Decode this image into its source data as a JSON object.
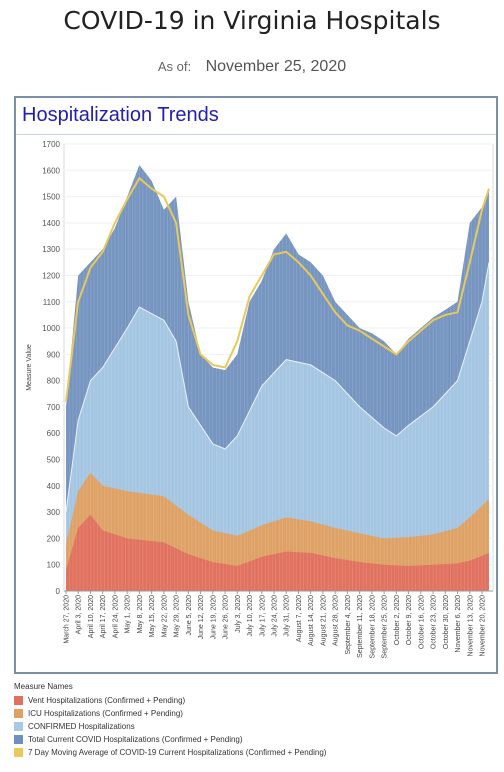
{
  "header": {
    "title": "COVID-19 in Virginia Hospitals",
    "as_of_label": "As of:",
    "as_of_date": "November 25, 2020"
  },
  "panel": {
    "title": "Hospitalization Trends"
  },
  "legend": {
    "title": "Measure Names",
    "items": [
      {
        "label": "Vent Hospitalizations (Confirmed + Pending)",
        "color": "#e07060"
      },
      {
        "label": "ICU Hospitalizations (Confirmed + Pending)",
        "color": "#e0a060"
      },
      {
        "label": "CONFIRMED Hospitalizations",
        "color": "#a8c8e4"
      },
      {
        "label": "Total Current COVID Hospitalizations (Confirmed + Pending)",
        "color": "#6f8fbd"
      },
      {
        "label": "7 Day Moving Average of COVID-19 Current Hospitalizations (Confirmed + Pending)",
        "color": "#e8c95a"
      }
    ]
  },
  "chart_data": {
    "type": "area",
    "ylabel": "Measure Value",
    "ylim": [
      0,
      1700
    ],
    "yticks": [
      0,
      100,
      200,
      300,
      400,
      500,
      600,
      700,
      800,
      900,
      1000,
      1100,
      1200,
      1300,
      1400,
      1500,
      1600,
      1700
    ],
    "x_range": [
      "March 27, 2020",
      "November 24, 2020"
    ],
    "x_ticks": [
      "March 27, 2020",
      "April 3, 2020",
      "April 10, 2020",
      "April 17, 2020",
      "April 24, 2020",
      "May 1, 2020",
      "May 8, 2020",
      "May 15, 2020",
      "May 22, 2020",
      "May 29, 2020",
      "June 5, 2020",
      "June 12, 2020",
      "June 19, 2020",
      "June 26, 2020",
      "July 3, 2020",
      "July 10, 2020",
      "July 17, 2020",
      "July 24, 2020",
      "July 31, 2020",
      "August 7, 2020",
      "August 14, 2020",
      "August 21, 2020",
      "August 28, 2020",
      "September 4, 2020",
      "September 11, 2020",
      "September 18, 2020",
      "September 25, 2020",
      "October 2, 2020",
      "October 9, 2020",
      "October 16, 2020",
      "October 23, 2020",
      "October 30, 2020",
      "November 6, 2020",
      "November 13, 2020",
      "November 20, 2020"
    ],
    "series": [
      {
        "name": "Vent Hospitalizations (Confirmed + Pending)",
        "color": "#e07060",
        "points": [
          [
            "March 27, 2020",
            80
          ],
          [
            "April 3, 2020",
            240
          ],
          [
            "April 10, 2020",
            290
          ],
          [
            "April 17, 2020",
            230
          ],
          [
            "May 1, 2020",
            200
          ],
          [
            "May 22, 2020",
            185
          ],
          [
            "June 5, 2020",
            140
          ],
          [
            "June 19, 2020",
            110
          ],
          [
            "July 3, 2020",
            95
          ],
          [
            "July 17, 2020",
            130
          ],
          [
            "July 31, 2020",
            150
          ],
          [
            "August 14, 2020",
            145
          ],
          [
            "August 28, 2020",
            125
          ],
          [
            "September 11, 2020",
            110
          ],
          [
            "September 25, 2020",
            100
          ],
          [
            "October 9, 2020",
            95
          ],
          [
            "October 23, 2020",
            100
          ],
          [
            "November 6, 2020",
            105
          ],
          [
            "November 13, 2020",
            115
          ],
          [
            "November 24, 2020",
            145
          ]
        ]
      },
      {
        "name": "ICU Hospitalizations (Confirmed + Pending)",
        "color": "#e0a060",
        "points": [
          [
            "March 27, 2020",
            180
          ],
          [
            "April 3, 2020",
            380
          ],
          [
            "April 10, 2020",
            450
          ],
          [
            "April 17, 2020",
            400
          ],
          [
            "May 1, 2020",
            380
          ],
          [
            "May 22, 2020",
            360
          ],
          [
            "June 5, 2020",
            290
          ],
          [
            "June 19, 2020",
            230
          ],
          [
            "July 3, 2020",
            210
          ],
          [
            "July 17, 2020",
            250
          ],
          [
            "July 31, 2020",
            280
          ],
          [
            "August 14, 2020",
            265
          ],
          [
            "August 28, 2020",
            240
          ],
          [
            "September 11, 2020",
            220
          ],
          [
            "September 25, 2020",
            200
          ],
          [
            "October 9, 2020",
            205
          ],
          [
            "October 23, 2020",
            215
          ],
          [
            "November 6, 2020",
            240
          ],
          [
            "November 13, 2020",
            280
          ],
          [
            "November 24, 2020",
            350
          ]
        ]
      },
      {
        "name": "CONFIRMED Hospitalizations",
        "color": "#a8c8e4",
        "points": [
          [
            "March 27, 2020",
            300
          ],
          [
            "April 3, 2020",
            650
          ],
          [
            "April 10, 2020",
            800
          ],
          [
            "April 17, 2020",
            850
          ],
          [
            "May 1, 2020",
            1000
          ],
          [
            "May 8, 2020",
            1080
          ],
          [
            "May 22, 2020",
            1030
          ],
          [
            "May 29, 2020",
            950
          ],
          [
            "June 5, 2020",
            700
          ],
          [
            "June 19, 2020",
            560
          ],
          [
            "June 26, 2020",
            540
          ],
          [
            "July 3, 2020",
            590
          ],
          [
            "July 17, 2020",
            780
          ],
          [
            "July 31, 2020",
            880
          ],
          [
            "August 14, 2020",
            860
          ],
          [
            "August 28, 2020",
            800
          ],
          [
            "September 11, 2020",
            700
          ],
          [
            "September 25, 2020",
            620
          ],
          [
            "October 2, 2020",
            590
          ],
          [
            "October 9, 2020",
            630
          ],
          [
            "October 23, 2020",
            700
          ],
          [
            "November 6, 2020",
            800
          ],
          [
            "November 13, 2020",
            950
          ],
          [
            "November 20, 2020",
            1100
          ],
          [
            "November 24, 2020",
            1250
          ]
        ]
      },
      {
        "name": "Total Current COVID Hospitalizations (Confirmed + Pending)",
        "color": "#6f8fbd",
        "points": [
          [
            "March 27, 2020",
            700
          ],
          [
            "April 3, 2020",
            1200
          ],
          [
            "April 10, 2020",
            1250
          ],
          [
            "April 17, 2020",
            1300
          ],
          [
            "April 24, 2020",
            1380
          ],
          [
            "May 1, 2020",
            1500
          ],
          [
            "May 8, 2020",
            1620
          ],
          [
            "May 15, 2020",
            1560
          ],
          [
            "May 22, 2020",
            1450
          ],
          [
            "May 29, 2020",
            1500
          ],
          [
            "June 5, 2020",
            1100
          ],
          [
            "June 12, 2020",
            900
          ],
          [
            "June 19, 2020",
            850
          ],
          [
            "June 26, 2020",
            840
          ],
          [
            "July 3, 2020",
            900
          ],
          [
            "July 10, 2020",
            1100
          ],
          [
            "July 17, 2020",
            1180
          ],
          [
            "July 24, 2020",
            1300
          ],
          [
            "July 31, 2020",
            1360
          ],
          [
            "August 7, 2020",
            1280
          ],
          [
            "August 14, 2020",
            1250
          ],
          [
            "August 21, 2020",
            1200
          ],
          [
            "August 28, 2020",
            1100
          ],
          [
            "September 4, 2020",
            1050
          ],
          [
            "September 11, 2020",
            1000
          ],
          [
            "September 18, 2020",
            980
          ],
          [
            "September 25, 2020",
            950
          ],
          [
            "October 2, 2020",
            900
          ],
          [
            "October 9, 2020",
            960
          ],
          [
            "October 16, 2020",
            1000
          ],
          [
            "October 23, 2020",
            1040
          ],
          [
            "October 30, 2020",
            1070
          ],
          [
            "November 6, 2020",
            1100
          ],
          [
            "November 13, 2020",
            1400
          ],
          [
            "November 20, 2020",
            1460
          ],
          [
            "November 24, 2020",
            1530
          ]
        ]
      },
      {
        "name": "7 Day Moving Average of COVID-19 Current Hospitalizations (Confirmed + Pending)",
        "color": "#e8c95a",
        "points": [
          [
            "March 27, 2020",
            720
          ],
          [
            "April 3, 2020",
            1100
          ],
          [
            "April 10, 2020",
            1230
          ],
          [
            "April 17, 2020",
            1290
          ],
          [
            "April 24, 2020",
            1400
          ],
          [
            "May 1, 2020",
            1490
          ],
          [
            "May 8, 2020",
            1570
          ],
          [
            "May 15, 2020",
            1530
          ],
          [
            "May 22, 2020",
            1500
          ],
          [
            "May 29, 2020",
            1400
          ],
          [
            "June 5, 2020",
            1050
          ],
          [
            "June 12, 2020",
            900
          ],
          [
            "June 19, 2020",
            860
          ],
          [
            "June 26, 2020",
            850
          ],
          [
            "July 3, 2020",
            950
          ],
          [
            "July 10, 2020",
            1120
          ],
          [
            "July 17, 2020",
            1200
          ],
          [
            "July 24, 2020",
            1280
          ],
          [
            "July 31, 2020",
            1290
          ],
          [
            "August 7, 2020",
            1250
          ],
          [
            "August 14, 2020",
            1200
          ],
          [
            "August 21, 2020",
            1130
          ],
          [
            "August 28, 2020",
            1060
          ],
          [
            "September 4, 2020",
            1010
          ],
          [
            "September 11, 2020",
            990
          ],
          [
            "September 18, 2020",
            960
          ],
          [
            "September 25, 2020",
            930
          ],
          [
            "October 2, 2020",
            900
          ],
          [
            "October 9, 2020",
            950
          ],
          [
            "October 16, 2020",
            990
          ],
          [
            "October 23, 2020",
            1030
          ],
          [
            "October 30, 2020",
            1050
          ],
          [
            "November 6, 2020",
            1060
          ],
          [
            "November 13, 2020",
            1250
          ],
          [
            "November 20, 2020",
            1450
          ],
          [
            "November 24, 2020",
            1530
          ]
        ]
      }
    ],
    "grid": true
  }
}
